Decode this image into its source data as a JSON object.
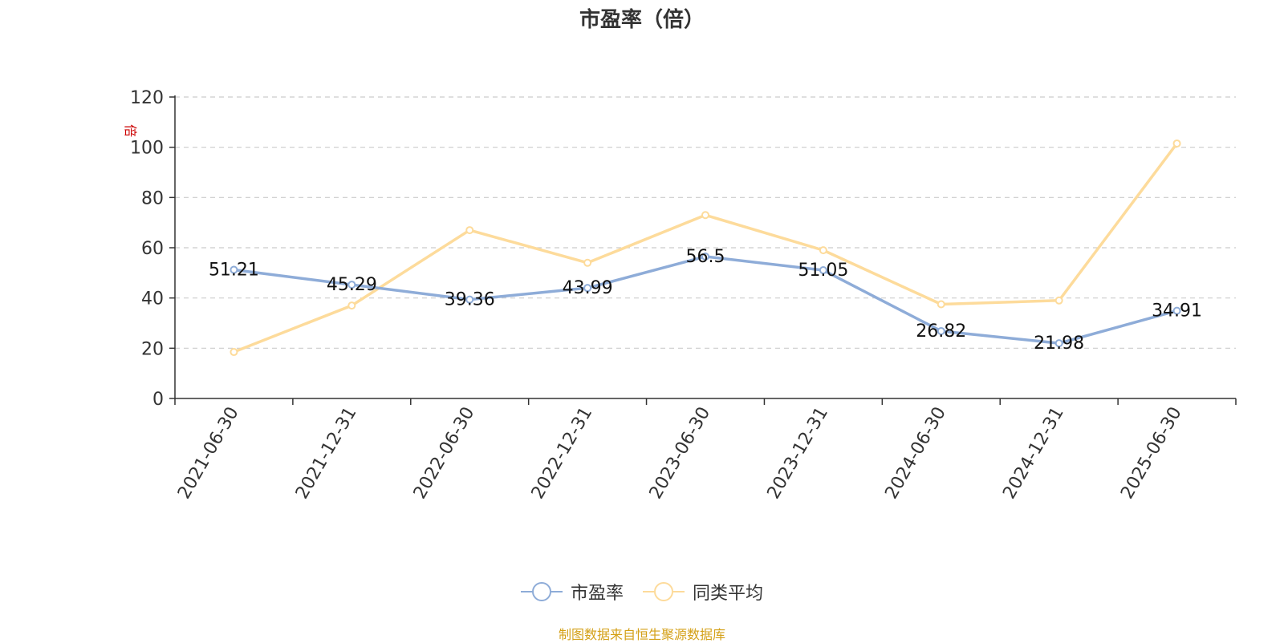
{
  "chart_data": {
    "type": "line",
    "title": "市盈率（倍）",
    "ylabel": "倍",
    "categories": [
      "2021-06-30",
      "2021-12-31",
      "2022-06-30",
      "2022-12-31",
      "2023-06-30",
      "2023-12-31",
      "2024-06-30",
      "2024-12-31",
      "2025-06-30"
    ],
    "ylim": [
      0,
      120
    ],
    "yticks": [
      0,
      20,
      40,
      60,
      80,
      100,
      120
    ],
    "grid": true,
    "legend_position": "bottom",
    "series": [
      {
        "name": "市盈率",
        "color": "#8eacd8",
        "show_labels": true,
        "values": [
          51.21,
          45.29,
          39.36,
          43.99,
          56.5,
          51.05,
          26.82,
          21.98,
          34.91
        ],
        "labels": [
          "51.21",
          "45.29",
          "39.36",
          "43.99",
          "56.5",
          "51.05",
          "26.82",
          "21.98",
          "34.91"
        ]
      },
      {
        "name": "同类平均",
        "color": "#fddb9b",
        "show_labels": false,
        "values": [
          18.5,
          37.0,
          67.0,
          54.0,
          73.0,
          59.0,
          37.5,
          39.0,
          101.5
        ]
      }
    ]
  },
  "source_text": "制图数据来自恒生聚源数据库",
  "source_color": "#d4a017",
  "ylabel_color": "#cc0000"
}
